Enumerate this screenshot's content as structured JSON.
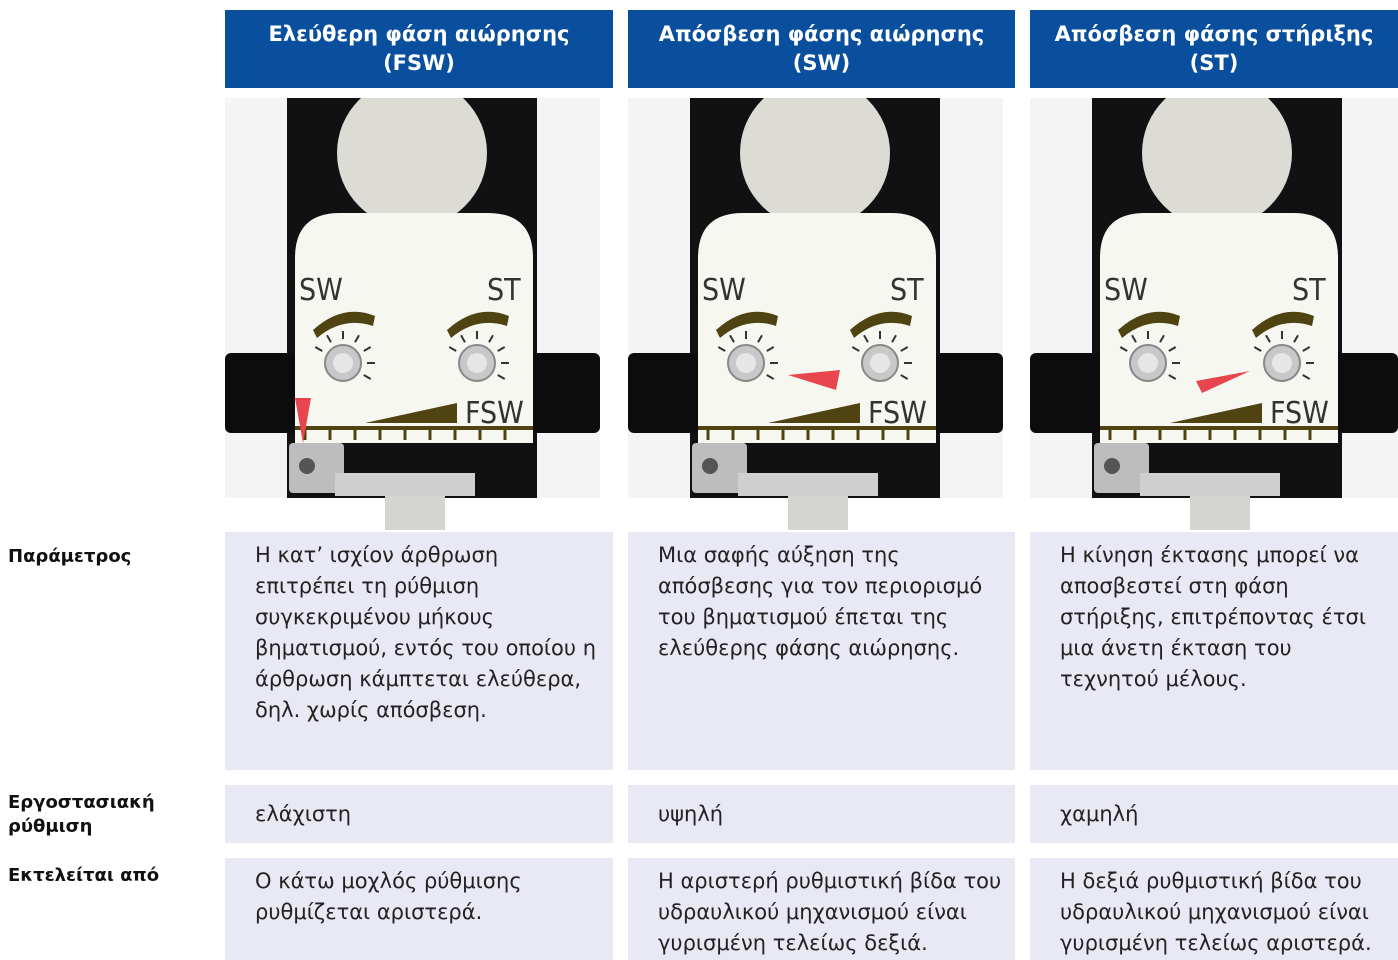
{
  "header": {
    "columns": [
      {
        "title": "Ελεύθερη φάση αιώρησης",
        "code": "(FSW)"
      },
      {
        "title": "Απόσβεση φάσης αιώρησης",
        "code": "(SW)"
      },
      {
        "title": "Απόσβεση φάσης στήριξης",
        "code": "(ST)"
      }
    ]
  },
  "image_labels": {
    "left": "SW",
    "right": "ST",
    "bottom": "FSW"
  },
  "table": {
    "rows": [
      {
        "label": "Παράμετρος",
        "cells": [
          "Η κατ’ ισχίον άρθρωση επιτρέπει τη ρύθμιση συγκεκριμένου μήκους βηματισμού, εντός του οποίου η άρθρωση κάμπτεται ελεύθερα, δηλ. χωρίς απόσβεση.",
          "Μια σαφής αύξηση της απόσβεσης για τον περιορισμό του βηματισμού έπεται της ελεύθερης φάσης αιώρησης.",
          "Η κίνηση έκτασης μπορεί να αποσβεστεί στη φάση στήριξης, επιτρέποντας έτσι μια άνετη έκταση του τεχνητού μέλους."
        ]
      },
      {
        "label": "Εργοστασιακή ρύθμιση",
        "cells": [
          "ελάχιστη",
          "υψηλή",
          "χαμηλή"
        ]
      },
      {
        "label": "Εκτελείται από",
        "cells": [
          "Ο κάτω μοχλός ρύθμισης ρυθμίζεται αριστερά.",
          "Η αριστερή ρυθμιστική βίδα του υδραυλικού μηχανισμού είναι γυρισμένη τελείως δεξιά.",
          "Η δεξιά ρυθμιστική βίδα του υδραυλικού μηχανισμού είναι γυρισμένη τελείως αριστερά."
        ]
      }
    ]
  }
}
